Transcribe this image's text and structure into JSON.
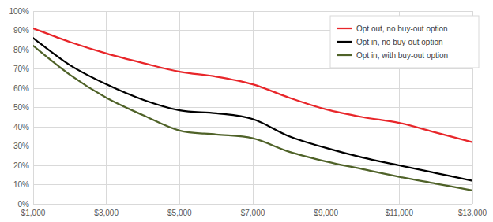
{
  "chart_data": {
    "type": "line",
    "x": [
      1000,
      2000,
      3000,
      4000,
      5000,
      6000,
      7000,
      8000,
      9000,
      10000,
      11000,
      12000,
      13000
    ],
    "series": [
      {
        "name": "Opt out, no buy-out option",
        "color": "#e8262a",
        "values": [
          91,
          84,
          78,
          73,
          68.5,
          66,
          62,
          55,
          49,
          45,
          42,
          37,
          32
        ]
      },
      {
        "name": "Opt in, no buy-out option",
        "color": "#000000",
        "values": [
          86,
          72,
          62,
          54,
          48.5,
          47,
          44,
          35,
          29,
          24,
          20,
          16,
          12
        ]
      },
      {
        "name": "Opt in, with buy-out option",
        "color": "#4f6228",
        "values": [
          82,
          67,
          55,
          46,
          38,
          36,
          34,
          27,
          22,
          18,
          14,
          10.5,
          7
        ]
      }
    ],
    "xlim": [
      1000,
      13000
    ],
    "xticks": [
      {
        "value": 1000,
        "label": "$1,000"
      },
      {
        "value": 3000,
        "label": "$3,000"
      },
      {
        "value": 5000,
        "label": "$5,000"
      },
      {
        "value": 7000,
        "label": "$7,000"
      },
      {
        "value": 9000,
        "label": "$9,000"
      },
      {
        "value": 11000,
        "label": "$11,000"
      },
      {
        "value": 13000,
        "label": "$13,000"
      }
    ],
    "ylim": [
      0,
      100
    ],
    "yticks": [
      {
        "value": 0,
        "label": "0%"
      },
      {
        "value": 10,
        "label": "10%"
      },
      {
        "value": 20,
        "label": "20%"
      },
      {
        "value": 30,
        "label": "30%"
      },
      {
        "value": 40,
        "label": "40%"
      },
      {
        "value": 50,
        "label": "50%"
      },
      {
        "value": 60,
        "label": "60%"
      },
      {
        "value": 70,
        "label": "70%"
      },
      {
        "value": 80,
        "label": "80%"
      },
      {
        "value": 90,
        "label": "90%"
      },
      {
        "value": 100,
        "label": "100%"
      }
    ],
    "grid": true,
    "legend": "upper right"
  }
}
